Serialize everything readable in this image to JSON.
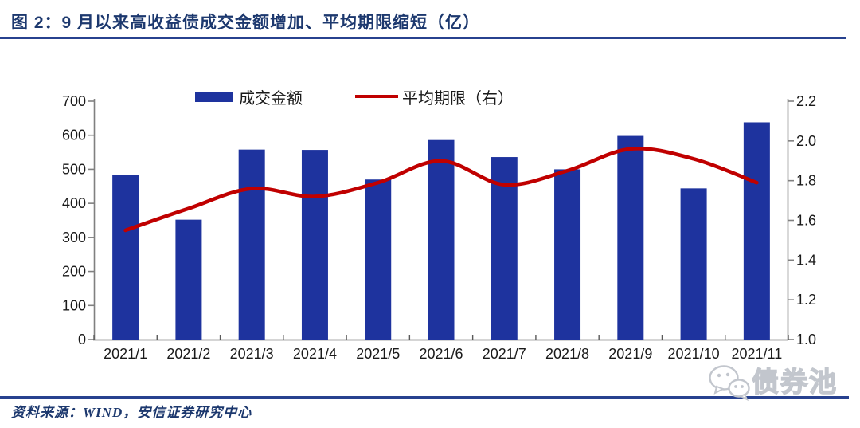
{
  "header": {
    "title": "图 2：9 月以来高收益债成交金额增加、平均期限缩短（亿）"
  },
  "legend": {
    "items": [
      {
        "label": "成交金额",
        "type": "bar"
      },
      {
        "label": "平均期限（右）",
        "type": "line"
      }
    ]
  },
  "chart_data": {
    "type": "bar+line combo",
    "title": "图 2：9 月以来高收益债成交金额增加、平均期限缩短（亿）",
    "categories": [
      "2021/1",
      "2021/2",
      "2021/3",
      "2021/4",
      "2021/5",
      "2021/6",
      "2021/7",
      "2021/8",
      "2021/9",
      "2021/10",
      "2021/11"
    ],
    "series": [
      {
        "name": "成交金额",
        "type": "bar",
        "axis": "left",
        "color": "#1E339E",
        "values": [
          483,
          352,
          558,
          557,
          470,
          586,
          536,
          500,
          598,
          444,
          638
        ]
      },
      {
        "name": "平均期限（右）",
        "type": "line",
        "axis": "right",
        "color": "#C00000",
        "values": [
          1.55,
          1.66,
          1.76,
          1.72,
          1.79,
          1.9,
          1.78,
          1.85,
          1.96,
          1.91,
          1.79
        ]
      }
    ],
    "left_axis": {
      "min": 0,
      "max": 700,
      "step": 100,
      "ticks": [
        "0",
        "100",
        "200",
        "300",
        "400",
        "500",
        "600",
        "700"
      ]
    },
    "right_axis": {
      "min": 1.0,
      "max": 2.2,
      "step": 0.2,
      "ticks": [
        "1.0",
        "1.2",
        "1.4",
        "1.6",
        "1.8",
        "2.0",
        "2.2"
      ]
    },
    "grid": false,
    "legend_position": "top-center"
  },
  "footer": {
    "source": "资料来源：WIND，安信证券研究中心",
    "watermark_icon": "wechat-icon",
    "watermark_text": "债券池"
  },
  "colors": {
    "bar": "#1E339E",
    "line": "#C00000",
    "navy_text": "#1C386E",
    "rule": "#27418F",
    "axis": "#808080",
    "axis_bottom": "#595959",
    "tick_label": "#1A1A1A",
    "watermark": "#C6CAD2"
  }
}
